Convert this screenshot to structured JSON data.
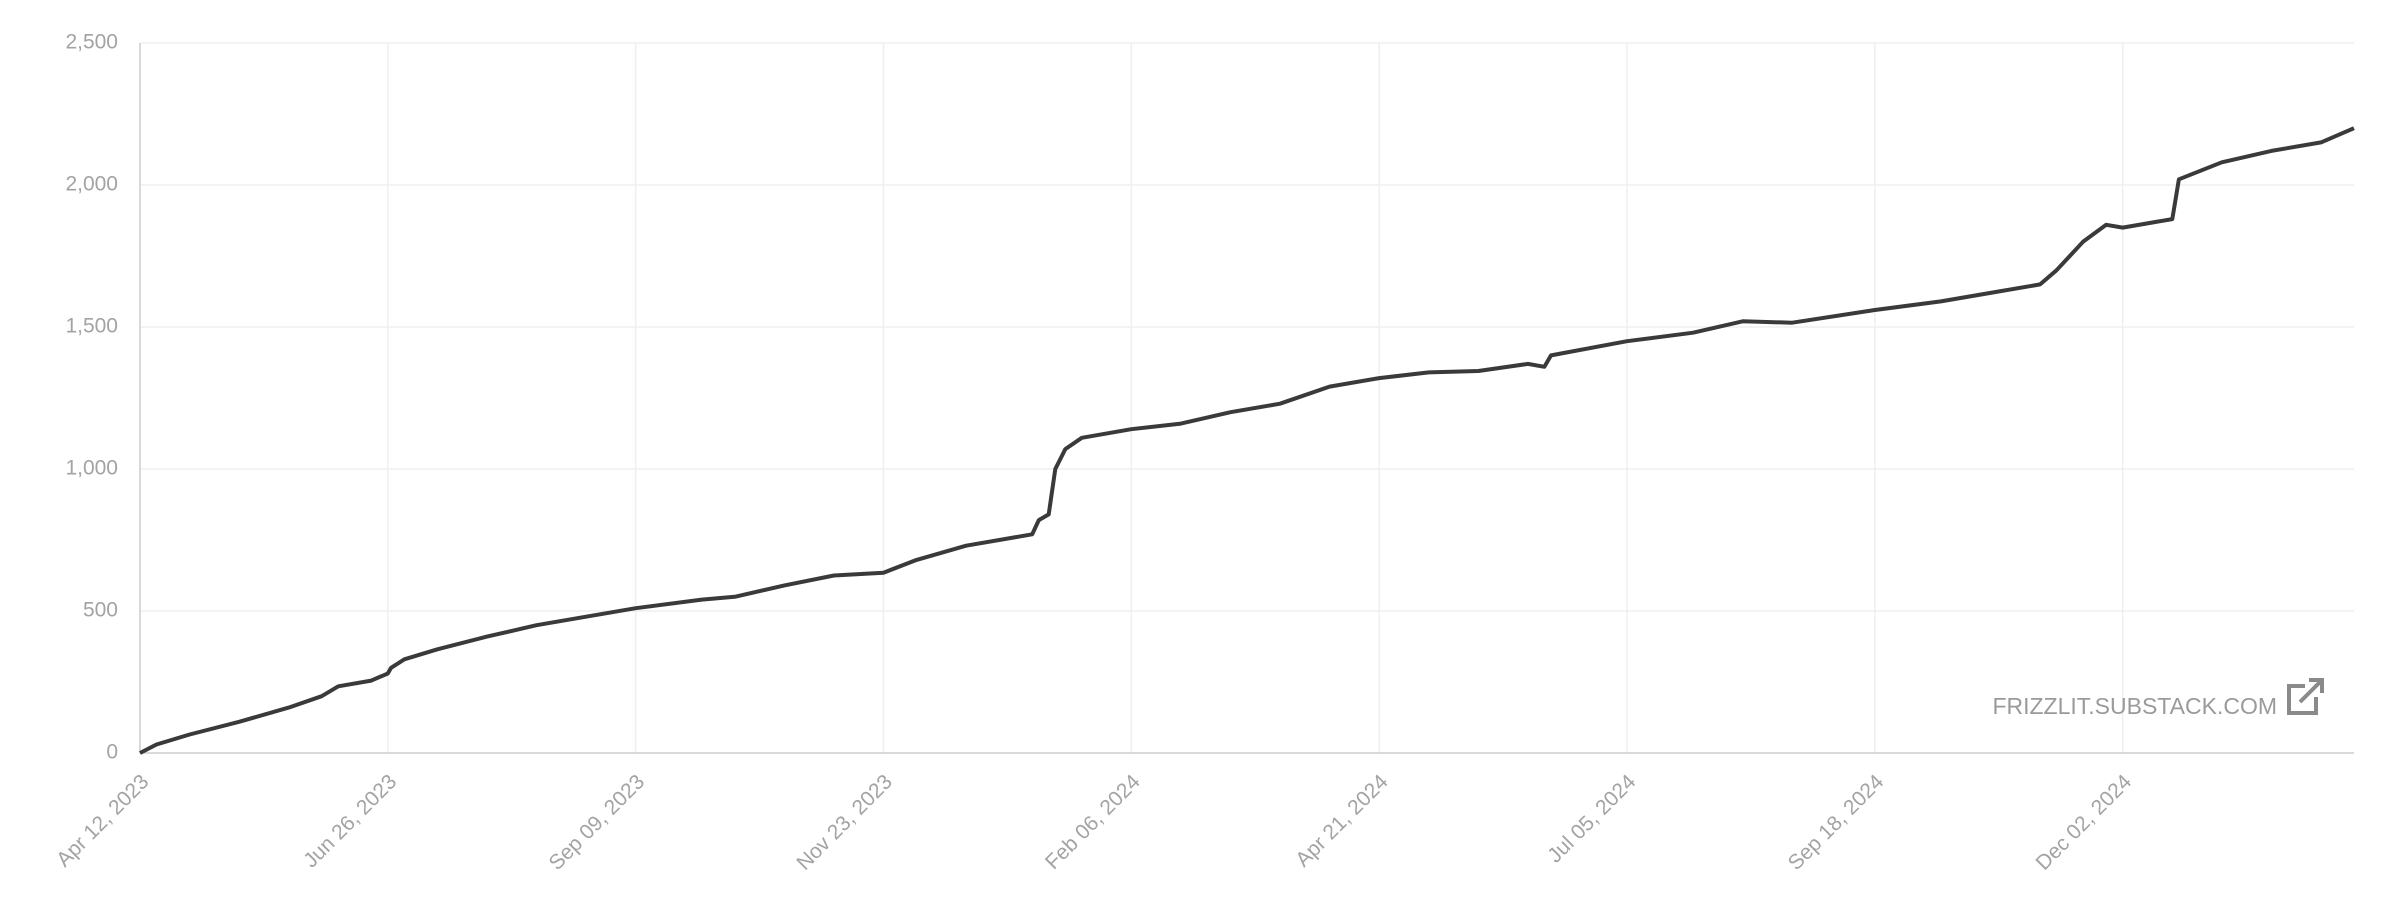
{
  "chart_data": {
    "type": "line",
    "x": [
      "2023-04-12",
      "2023-04-17",
      "2023-04-27",
      "2023-05-12",
      "2023-05-27",
      "2023-06-06",
      "2023-06-11",
      "2023-06-21",
      "2023-06-25",
      "2023-06-26",
      "2023-06-27",
      "2023-07-01",
      "2023-07-11",
      "2023-07-26",
      "2023-08-10",
      "2023-08-25",
      "2023-09-09",
      "2023-09-29",
      "2023-10-09",
      "2023-10-24",
      "2023-11-08",
      "2023-11-23",
      "2023-12-03",
      "2023-12-18",
      "2024-01-07",
      "2024-01-09",
      "2024-01-12",
      "2024-01-14",
      "2024-01-17",
      "2024-01-22",
      "2024-02-06",
      "2024-02-21",
      "2024-03-07",
      "2024-03-22",
      "2024-04-06",
      "2024-04-21",
      "2024-05-06",
      "2024-05-21",
      "2024-06-05",
      "2024-06-10",
      "2024-06-12",
      "2024-07-05",
      "2024-07-25",
      "2024-08-09",
      "2024-08-24",
      "2024-09-18",
      "2024-10-08",
      "2024-10-23",
      "2024-11-07",
      "2024-11-12",
      "2024-11-20",
      "2024-11-27",
      "2024-12-02",
      "2024-12-17",
      "2024-12-19",
      "2025-01-01",
      "2025-01-16",
      "2025-01-31",
      "2025-02-10"
    ],
    "series": [
      {
        "color": "#3a3a3a",
        "values": [
          0,
          30,
          65,
          110,
          160,
          200,
          235,
          255,
          275,
          280,
          300,
          330,
          365,
          410,
          450,
          480,
          510,
          540,
          550,
          590,
          625,
          635,
          680,
          730,
          770,
          820,
          840,
          1000,
          1070,
          1110,
          1140,
          1160,
          1200,
          1230,
          1290,
          1320,
          1340,
          1345,
          1370,
          1360,
          1400,
          1450,
          1480,
          1520,
          1515,
          1560,
          1590,
          1620,
          1650,
          1700,
          1800,
          1860,
          1850,
          1880,
          2020,
          2080,
          2120,
          2150,
          2200
        ]
      }
    ],
    "xlim": [
      "2023-04-12",
      "2025-02-10"
    ],
    "xticks": [
      {
        "value": "2023-04-12",
        "label": "Apr 12, 2023"
      },
      {
        "value": "2023-06-26",
        "label": "Jun 26, 2023"
      },
      {
        "value": "2023-09-09",
        "label": "Sep 09, 2023"
      },
      {
        "value": "2023-11-23",
        "label": "Nov 23, 2023"
      },
      {
        "value": "2024-02-06",
        "label": "Feb 06, 2024"
      },
      {
        "value": "2024-04-21",
        "label": "Apr 21, 2024"
      },
      {
        "value": "2024-07-05",
        "label": "Jul 05, 2024"
      },
      {
        "value": "2024-09-18",
        "label": "Sep 18, 2024"
      },
      {
        "value": "2024-12-02",
        "label": "Dec 02, 2024"
      }
    ],
    "ylim": [
      0,
      2500
    ],
    "yticks": [
      0,
      500,
      {
        "value": 1000,
        "label": "1,000"
      },
      {
        "value": 1500,
        "label": "1,500"
      },
      {
        "value": 2000,
        "label": "2,000"
      },
      {
        "value": 2500,
        "label": "2,500"
      }
    ],
    "grid": true,
    "watermark": "FRIZZLIT.SUBSTACK.COM"
  }
}
